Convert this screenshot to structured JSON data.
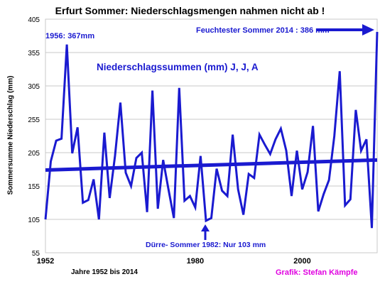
{
  "chart_data": {
    "type": "line",
    "title": "Erfurt Sommer: Niederschlagsmengen nahmen nicht ab !",
    "ylabel": "Sommersumme  Niederschlag (mm)",
    "xlabel": "",
    "ylim": [
      55,
      405
    ],
    "xlim": [
      1952,
      2014
    ],
    "yticks": [
      "55",
      "105",
      "155",
      "205",
      "255",
      "305",
      "355",
      "405"
    ],
    "xticks": [
      "1952",
      "1980",
      "2000"
    ],
    "grid": true,
    "series": [
      {
        "name": "Niederschlagssummen (mm) J, J, A",
        "color": "#1a1ad0",
        "x": [
          1952,
          1953,
          1954,
          1955,
          1956,
          1957,
          1958,
          1959,
          1960,
          1961,
          1962,
          1963,
          1964,
          1965,
          1966,
          1967,
          1968,
          1969,
          1970,
          1971,
          1972,
          1973,
          1974,
          1975,
          1976,
          1977,
          1978,
          1979,
          1980,
          1981,
          1982,
          1983,
          1984,
          1985,
          1986,
          1987,
          1988,
          1989,
          1990,
          1991,
          1992,
          1993,
          1994,
          1995,
          1996,
          1997,
          1998,
          1999,
          2000,
          2001,
          2002,
          2003,
          2004,
          2005,
          2006,
          2007,
          2008,
          2009,
          2010,
          2011,
          2012,
          2013,
          2014
        ],
        "y": [
          105,
          192,
          223,
          226,
          367,
          204,
          243,
          130,
          134,
          165,
          105,
          235,
          137,
          200,
          280,
          175,
          155,
          197,
          205,
          116,
          298,
          121,
          194,
          150,
          107,
          302,
          133,
          140,
          123,
          200,
          103,
          107,
          181,
          148,
          140,
          232,
          150,
          112,
          173,
          167,
          232,
          217,
          203,
          225,
          241,
          208,
          140,
          208,
          150,
          176,
          245,
          117,
          143,
          164,
          230,
          327,
          126,
          135,
          269,
          208,
          225,
          92,
          386
        ]
      },
      {
        "name": "trend",
        "color": "#1a1ad0",
        "x": [
          1952,
          2014
        ],
        "y": [
          179,
          194
        ]
      }
    ],
    "annotations": [
      "1956: 367mm",
      "Niederschlagssummen (mm) J, J, A",
      "Feuchtester Sommer 2014 : 386 mm",
      "Dürre- Sommer 1982:  Nur 103 mm"
    ]
  },
  "footer": {
    "range_label": "Jahre 1952 bis 2014",
    "credit": "Grafik: Stefan Kämpfe"
  }
}
